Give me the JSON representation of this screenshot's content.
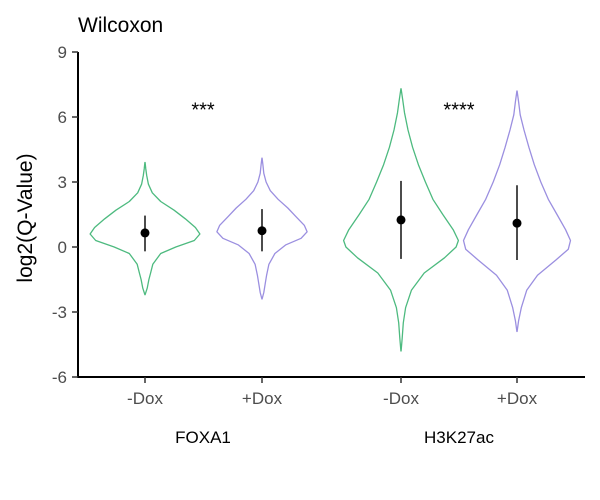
{
  "chart_data": {
    "type": "violin",
    "title": "Wilcoxon",
    "ylabel": "log2(Q-Value)",
    "xlabel": "",
    "ylim": [
      -6,
      9
    ],
    "yticks": [
      -6,
      -3,
      0,
      3,
      6,
      9
    ],
    "grid": false,
    "legend": "none",
    "colors": {
      "minus_dox": "#4dba7f",
      "plus_dox": "#9b8fe0"
    },
    "groups": [
      {
        "label": "FOXA1",
        "significance": "***",
        "violins": [
          {
            "label": "-Dox",
            "color": "#4dba7f",
            "median": 0.65,
            "lower": -0.2,
            "upper": 1.45,
            "ymin": -2.2,
            "ymax": 3.9,
            "profile": [
              [
                -2.2,
                0.002
              ],
              [
                -1.9,
                0.04
              ],
              [
                -1.5,
                0.07
              ],
              [
                -1.2,
                0.1
              ],
              [
                -0.8,
                0.14
              ],
              [
                -0.3,
                0.28
              ],
              [
                0.0,
                0.55
              ],
              [
                0.3,
                0.88
              ],
              [
                0.6,
                0.98
              ],
              [
                0.9,
                0.9
              ],
              [
                1.3,
                0.72
              ],
              [
                1.7,
                0.52
              ],
              [
                2.1,
                0.28
              ],
              [
                2.5,
                0.13
              ],
              [
                2.9,
                0.06
              ],
              [
                3.3,
                0.03
              ],
              [
                3.6,
                0.015
              ],
              [
                3.9,
                0.002
              ]
            ]
          },
          {
            "label": "+Dox",
            "color": "#9b8fe0",
            "median": 0.75,
            "lower": -0.2,
            "upper": 1.75,
            "ymin": -2.4,
            "ymax": 4.1,
            "profile": [
              [
                -2.4,
                0.002
              ],
              [
                -2.1,
                0.04
              ],
              [
                -1.7,
                0.07
              ],
              [
                -1.3,
                0.1
              ],
              [
                -0.8,
                0.15
              ],
              [
                -0.3,
                0.28
              ],
              [
                0.1,
                0.52
              ],
              [
                0.4,
                0.85
              ],
              [
                0.7,
                0.98
              ],
              [
                1.0,
                0.92
              ],
              [
                1.4,
                0.74
              ],
              [
                1.8,
                0.56
              ],
              [
                2.2,
                0.35
              ],
              [
                2.6,
                0.18
              ],
              [
                3.0,
                0.09
              ],
              [
                3.4,
                0.04
              ],
              [
                3.8,
                0.02
              ],
              [
                4.1,
                0.002
              ]
            ]
          }
        ]
      },
      {
        "label": "H3K27ac",
        "significance": "****",
        "violins": [
          {
            "label": "-Dox",
            "color": "#4dba7f",
            "median": 1.25,
            "lower": -0.55,
            "upper": 3.05,
            "ymin": -4.8,
            "ymax": 7.3,
            "profile": [
              [
                -4.8,
                0.002
              ],
              [
                -4.2,
                0.02
              ],
              [
                -3.5,
                0.04
              ],
              [
                -2.8,
                0.08
              ],
              [
                -2.0,
                0.18
              ],
              [
                -1.2,
                0.4
              ],
              [
                -0.5,
                0.75
              ],
              [
                0.0,
                0.95
              ],
              [
                0.3,
                0.99
              ],
              [
                0.8,
                0.9
              ],
              [
                1.5,
                0.72
              ],
              [
                2.2,
                0.55
              ],
              [
                3.0,
                0.42
              ],
              [
                3.8,
                0.3
              ],
              [
                4.6,
                0.2
              ],
              [
                5.4,
                0.12
              ],
              [
                6.2,
                0.06
              ],
              [
                6.8,
                0.03
              ],
              [
                7.3,
                0.002
              ]
            ]
          },
          {
            "label": "+Dox",
            "color": "#9b8fe0",
            "median": 1.1,
            "lower": -0.6,
            "upper": 2.85,
            "ymin": -3.9,
            "ymax": 7.2,
            "profile": [
              [
                -3.9,
                0.002
              ],
              [
                -3.4,
                0.03
              ],
              [
                -2.8,
                0.08
              ],
              [
                -2.0,
                0.18
              ],
              [
                -1.3,
                0.38
              ],
              [
                -0.6,
                0.72
              ],
              [
                -0.1,
                0.95
              ],
              [
                0.3,
                0.99
              ],
              [
                0.8,
                0.9
              ],
              [
                1.5,
                0.74
              ],
              [
                2.2,
                0.58
              ],
              [
                3.0,
                0.44
              ],
              [
                3.8,
                0.32
              ],
              [
                4.6,
                0.22
              ],
              [
                5.4,
                0.13
              ],
              [
                6.1,
                0.06
              ],
              [
                6.7,
                0.03
              ],
              [
                7.2,
                0.002
              ]
            ]
          }
        ]
      }
    ]
  }
}
